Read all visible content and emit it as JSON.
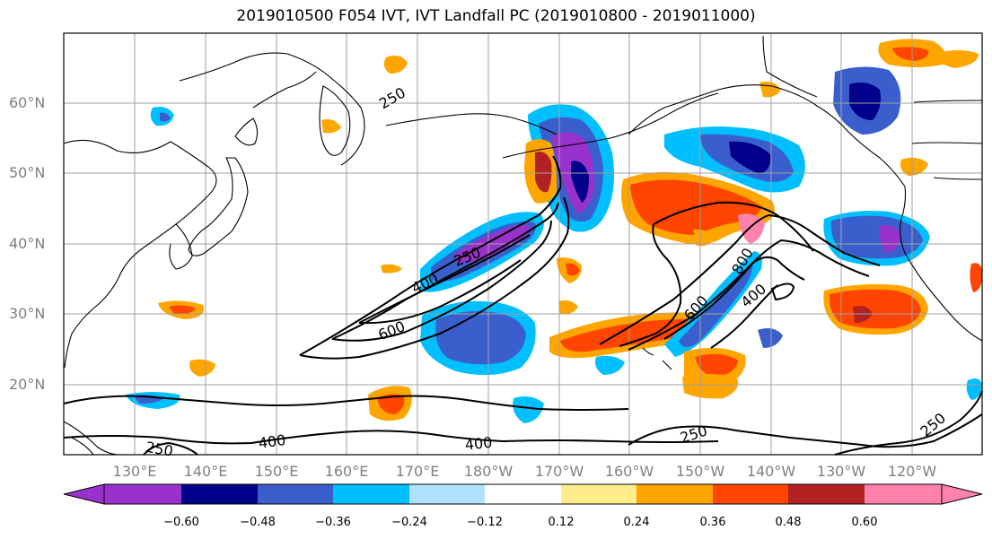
{
  "title": "2019010500 F054 IVT, IVT Landfall PC (2019010800 - 2019011000)",
  "axes": {
    "lat_labels": [
      "60°N",
      "50°N",
      "40°N",
      "30°N",
      "20°N"
    ],
    "lon_labels": [
      "130°E",
      "140°E",
      "150°E",
      "160°E",
      "170°E",
      "180°W",
      "170°W",
      "160°W",
      "150°W",
      "140°W",
      "130°W",
      "120°W"
    ],
    "label_color": "#7f7f7f",
    "grid": true
  },
  "contours": {
    "color": "#000000",
    "levels": [
      "250",
      "400",
      "600",
      "800"
    ],
    "labels": [
      "250",
      "250",
      "400",
      "600",
      "400",
      "400",
      "400",
      "250",
      "250",
      "250",
      "600",
      "800"
    ]
  },
  "colorbar": {
    "colors": [
      "#9932cc",
      "#00008b",
      "#3a5fcd",
      "#00bfff",
      "#b0e2ff",
      "#ffffff",
      "#ffec8b",
      "#ffa500",
      "#ff4500",
      "#b22222",
      "#ff82ab"
    ],
    "tick_labels": [
      "−0.60",
      "−0.48",
      "−0.36",
      "−0.24",
      "−0.12",
      "0.12",
      "0.24",
      "0.36",
      "0.48",
      "0.60"
    ],
    "extend": "both"
  }
}
